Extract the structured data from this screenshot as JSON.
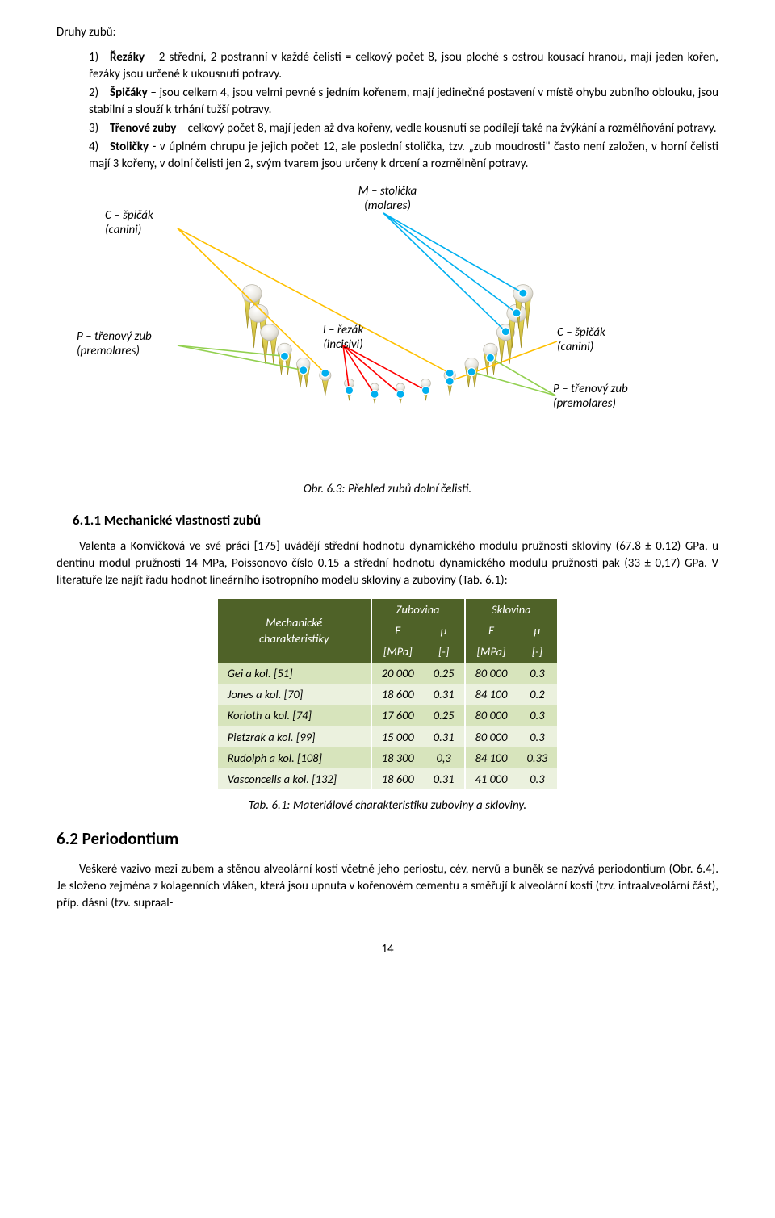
{
  "intro_title": "Druhy zubů:",
  "list": [
    {
      "n": "1)",
      "name": "Řezáky",
      "text": " – 2 střední, 2 postranní v každé čelisti = celkový počet 8, jsou ploché s ostrou kousací hranou, mají jeden kořen, řezáky jsou určené k ukousnutí potravy."
    },
    {
      "n": "2)",
      "name": "Špičáky",
      "text": " – jsou celkem 4, jsou velmi pevné s jedním kořenem, mají jedinečné postavení v místě ohybu zubního oblouku, jsou stabilní a slouží k trhání tužší potravy."
    },
    {
      "n": "3)",
      "name": "Třenové zuby",
      "text": " – celkový počet 8, mají jeden až dva kořeny, vedle kousnutí se podílejí také na žvýkání a rozmělňování potravy."
    },
    {
      "n": "4)",
      "name": "Stoličky",
      "text": " - v úplném chrupu je jejich počet 12, ale poslední stolička, tzv. „zub moudrosti\" často není založen, v horní čelisti mají 3 kořeny, v dolní čelisti jen 2, svým tvarem jsou určeny k drcení a rozmělnění potravy."
    }
  ],
  "labels": {
    "m_stolicka": "M – stolička\n(molares)",
    "c_spicak": "C – špičák\n(canini)",
    "p_trenovy": "P – třenový zub\n(premolares)",
    "i_rezak": "I – řezák\n(incisivi)"
  },
  "fig_caption": "Obr. 6.3: Přehled zubů dolní čelisti.",
  "h3": "6.1.1   Mechanické vlastnosti zubů",
  "para1": "Valenta a Konvičková ve své práci [175] uvádějí střední hodnotu dynamického modulu pružnosti skloviny (67.8 ± 0.12) GPa, u dentinu modul pružnosti 14 MPa, Poissonovo číslo 0.15 a střední hodnotu dynamického modulu pružnosti pak (33 ± 0,17) GPa. V literatuře lze najít řadu hodnot lineárního isotropního modelu skloviny a zuboviny (Tab. 6.1):",
  "table": {
    "corner": "Mechanické\ncharakteristiky",
    "col_groups": [
      "Zubovina",
      "Sklovina"
    ],
    "sub_cols": [
      "E",
      "μ",
      "E",
      "μ"
    ],
    "units": [
      "[MPa]",
      "[-]",
      "[MPa]",
      "[-]"
    ],
    "rows": [
      {
        "name": "Gei a kol. [51]",
        "vals": [
          "20 000",
          "0.25",
          "80 000",
          "0.3"
        ]
      },
      {
        "name": "Jones a kol. [70]",
        "vals": [
          "18 600",
          "0.31",
          "84 100",
          "0.2"
        ]
      },
      {
        "name": "Korioth  a kol. [74]",
        "vals": [
          "17 600",
          "0.25",
          "80 000",
          "0.3"
        ]
      },
      {
        "name": "Pietzrak a kol. [99]",
        "vals": [
          "15 000",
          "0.31",
          "80 000",
          "0.3"
        ]
      },
      {
        "name": "Rudolph a kol. [108]",
        "vals": [
          "18 300",
          "0,3",
          "84 100",
          "0.33"
        ]
      },
      {
        "name": "Vasconcells a kol. [132]",
        "vals": [
          "18 600",
          "0.31",
          "41 000",
          "0.3"
        ]
      }
    ],
    "header_bg": "#4f6228",
    "row_odd_bg": "#d7e4bc",
    "row_even_bg": "#ebf1de"
  },
  "tab_caption": "Tab. 6.1: Materiálové charakteristiku zuboviny a skloviny.",
  "h2": "6.2    Periodontium",
  "para2": "Veškeré vazivo mezi zubem a stěnou alveolární kosti včetně jeho periostu, cév, nervů a buněk se nazývá periodontium (Obr. 6.4). Je složeno zejména z kolagenních vláken, která jsou upnuta v kořenovém cementu a směřují k alveolární kosti (tzv. intraalveolární část), příp. dásni (tzv. supraal-",
  "page_num": "14",
  "diagram": {
    "line_colors": {
      "m": "#00b0f0",
      "c": "#ffc000",
      "p": "#92d050",
      "i": "#ff0000"
    },
    "marker_fill": "#00b0f0",
    "marker_r": 5
  }
}
